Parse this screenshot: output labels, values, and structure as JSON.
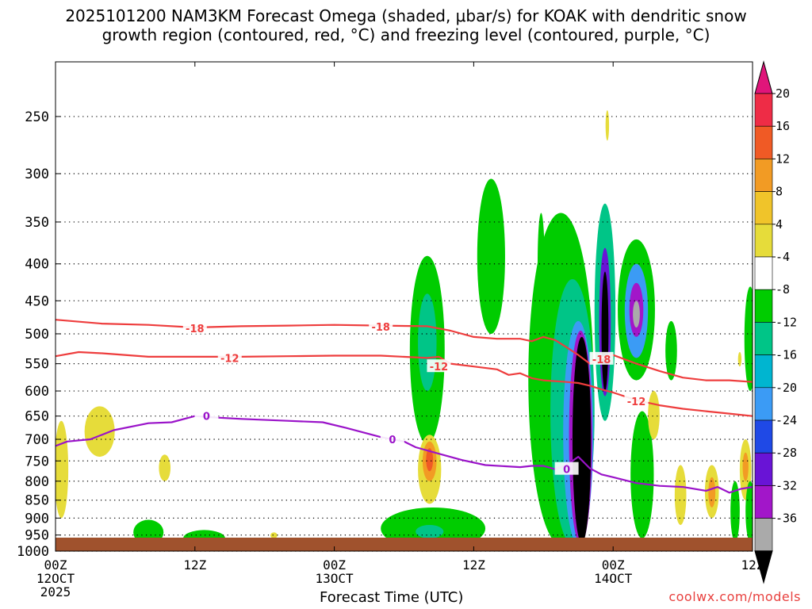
{
  "title": {
    "line1": "2025101200 NAM3KM Forecast Omega (shaded, μbar/s) for KOAK with dendritic snow",
    "line2": "growth region (contoured, red, °C) and freezing level (contoured, purple, °C)"
  },
  "credit": "coolwx.com/models",
  "chart_data": {
    "type": "heatmap",
    "xlabel": "Forecast Time (UTC)",
    "ylabel": "",
    "xlim": [
      0,
      60
    ],
    "x_ticks": [
      {
        "x": 0,
        "lines": [
          "00Z",
          "12OCT",
          "2025"
        ]
      },
      {
        "x": 12,
        "lines": [
          "12Z"
        ]
      },
      {
        "x": 24,
        "lines": [
          "00Z",
          "13OCT"
        ]
      },
      {
        "x": 36,
        "lines": [
          "12Z"
        ]
      },
      {
        "x": 48,
        "lines": [
          "00Z",
          "14OCT"
        ]
      },
      {
        "x": 60,
        "lines": [
          "12Z"
        ]
      }
    ],
    "y_scale": "log-pressure (hPa), inverted",
    "ylim": [
      1000,
      210
    ],
    "y_ticks": [
      250,
      300,
      350,
      400,
      450,
      500,
      550,
      600,
      650,
      700,
      750,
      800,
      850,
      900,
      950,
      1000
    ],
    "grid": "dotted horizontal at each pressure tick",
    "colorbar": {
      "labels": [
        20,
        16,
        12,
        8,
        4,
        -4,
        -8,
        -12,
        -16,
        -20,
        -24,
        -28,
        -32,
        -36
      ],
      "colors": [
        "#ee2c46",
        "#f05a25",
        "#f29b24",
        "#f0c42a",
        "#e6dc3a",
        "#ffffff",
        "#00cc00",
        "#00c587",
        "#00b5d0",
        "#3b9bf5",
        "#1f49e6",
        "#6914d6",
        "#a216c9",
        "#aaaaaa",
        "#000000"
      ],
      "top_color": "#e0157a",
      "bottom_color": "#000000"
    },
    "series": [
      {
        "name": "-18",
        "color": "#ee3d3d",
        "kind": "dendritic growth region (red)",
        "x": [
          0,
          4,
          8,
          12,
          16,
          20,
          24,
          28,
          32,
          34,
          36,
          38,
          40,
          41,
          42,
          43,
          44,
          45,
          46,
          47,
          48,
          50,
          52,
          54,
          56,
          58,
          60
        ],
        "y": [
          478,
          484,
          486,
          490,
          488,
          487,
          486,
          487,
          488,
          495,
          505,
          508,
          508,
          512,
          505,
          510,
          522,
          535,
          550,
          540,
          535,
          550,
          563,
          575,
          580,
          580,
          583
        ]
      },
      {
        "name": "-12",
        "color": "#ee3d3d",
        "kind": "dendritic growth region (red)",
        "x": [
          0,
          2,
          4,
          8,
          12,
          16,
          20,
          24,
          28,
          32,
          33,
          34,
          36,
          38,
          39,
          40,
          41,
          42,
          44,
          45,
          46,
          47,
          48,
          50,
          52,
          54,
          56,
          58,
          60
        ],
        "y": [
          537,
          530,
          532,
          538,
          538,
          538,
          537,
          536,
          536,
          540,
          538,
          550,
          555,
          560,
          570,
          567,
          576,
          580,
          583,
          585,
          590,
          597,
          603,
          618,
          628,
          635,
          640,
          645,
          650
        ]
      },
      {
        "name": "0",
        "color": "#9a13c9",
        "kind": "freezing level (purple)",
        "x": [
          0,
          1,
          3,
          5,
          8,
          10,
          12,
          13,
          16,
          20,
          23,
          25,
          28,
          30,
          31,
          33,
          35,
          37,
          40,
          41,
          42,
          43,
          44,
          45,
          46,
          47,
          48,
          50,
          52,
          54,
          56,
          57,
          58,
          59,
          60
        ],
        "y": [
          715,
          705,
          700,
          680,
          665,
          663,
          650,
          652,
          656,
          660,
          663,
          675,
          695,
          705,
          718,
          733,
          748,
          760,
          765,
          762,
          762,
          770,
          760,
          740,
          768,
          783,
          790,
          805,
          812,
          815,
          825,
          815,
          830,
          820,
          815
        ]
      }
    ],
    "contour_labels": [
      {
        "text": "-18",
        "x": 12,
        "y": 491,
        "series": "-18"
      },
      {
        "text": "-18",
        "x": 28,
        "y": 489,
        "series": "-18"
      },
      {
        "text": "-18",
        "x": 47,
        "y": 542,
        "series": "-18"
      },
      {
        "text": "-12",
        "x": 15,
        "y": 540,
        "series": "-12"
      },
      {
        "text": "-12",
        "x": 33,
        "y": 555,
        "series": "-12"
      },
      {
        "text": "-12",
        "x": 50,
        "y": 620,
        "series": "-12"
      },
      {
        "text": "0",
        "x": 13,
        "y": 650,
        "series": "0"
      },
      {
        "text": "0",
        "x": 29,
        "y": 700,
        "series": "0"
      },
      {
        "text": "0",
        "x": 44,
        "y": 770,
        "series": "0"
      }
    ],
    "omega_regions": [
      {
        "x": 0.5,
        "y": 760,
        "rx": 0.6,
        "ry_low": 900,
        "ry_high": 660,
        "value": 4
      },
      {
        "x": 3.8,
        "y": 690,
        "rx": 1.3,
        "ry_low": 740,
        "ry_high": 630,
        "value": 4
      },
      {
        "x": 9.4,
        "y": 765,
        "rx": 0.5,
        "ry_low": 800,
        "ry_high": 735,
        "value": 4
      },
      {
        "x": 1.3,
        "y": 985,
        "rx": 0.8,
        "ry_low": 995,
        "ry_high": 975,
        "value": -4
      },
      {
        "x": 8.0,
        "y": 935,
        "rx": 1.3,
        "ry_low": 980,
        "ry_high": 905,
        "value": -4
      },
      {
        "x": 12.8,
        "y": 960,
        "rx": 1.8,
        "ry_low": 985,
        "ry_high": 935,
        "value": -4
      },
      {
        "x": 26.0,
        "y": 980,
        "rx": 3.3,
        "ry_low": 1000,
        "ry_high": 960,
        "value": -4
      },
      {
        "x": 18.8,
        "y": 952,
        "rx": 0.3,
        "ry_low": 960,
        "ry_high": 942,
        "value": 4
      },
      {
        "x": 32.5,
        "y": 950,
        "rx": 4.5,
        "ry_low": 995,
        "ry_high": 870,
        "value": -4
      },
      {
        "x": 32.2,
        "y": 940,
        "rx": 1.2,
        "ry_low": 960,
        "ry_high": 920,
        "value": -8
      },
      {
        "x": 32.0,
        "y": 520,
        "rx": 1.5,
        "ry_low": 710,
        "ry_high": 390,
        "value": -4
      },
      {
        "x": 32.0,
        "y": 530,
        "rx": 0.8,
        "ry_low": 600,
        "ry_high": 440,
        "value": -8
      },
      {
        "x": 32.2,
        "y": 745,
        "rx": 1.0,
        "ry_low": 860,
        "ry_high": 690,
        "value": 4
      },
      {
        "x": 32.2,
        "y": 745,
        "rx": 0.6,
        "ry_low": 800,
        "ry_high": 705,
        "value": 12
      },
      {
        "x": 32.2,
        "y": 745,
        "rx": 0.3,
        "ry_low": 775,
        "ry_high": 720,
        "value": 16
      },
      {
        "x": 37.5,
        "y": 390,
        "rx": 1.2,
        "ry_low": 500,
        "ry_high": 305,
        "value": -4
      },
      {
        "x": 41.8,
        "y": 370,
        "rx": 0.3,
        "ry_low": 470,
        "ry_high": 340,
        "value": -4
      },
      {
        "x": 43.5,
        "y": 570,
        "rx": 2.8,
        "ry_low": 980,
        "ry_high": 340,
        "value": -4
      },
      {
        "x": 44.5,
        "y": 650,
        "rx": 1.9,
        "ry_low": 980,
        "ry_high": 420,
        "value": -8
      },
      {
        "x": 45.0,
        "y": 720,
        "rx": 1.3,
        "ry_low": 980,
        "ry_high": 480,
        "value": -16
      },
      {
        "x": 45.2,
        "y": 760,
        "rx": 1.0,
        "ry_low": 980,
        "ry_high": 495,
        "value": -28
      },
      {
        "x": 45.3,
        "y": 770,
        "rx": 0.8,
        "ry_low": 975,
        "ry_high": 505,
        "value": -36
      },
      {
        "x": 47.3,
        "y": 450,
        "rx": 0.9,
        "ry_low": 660,
        "ry_high": 330,
        "value": -8
      },
      {
        "x": 47.3,
        "y": 430,
        "rx": 0.5,
        "ry_low": 610,
        "ry_high": 380,
        "value": -24
      },
      {
        "x": 47.3,
        "y": 480,
        "rx": 0.3,
        "ry_low": 600,
        "ry_high": 410,
        "value": -36
      },
      {
        "x": 50.0,
        "y": 470,
        "rx": 1.6,
        "ry_low": 580,
        "ry_high": 370,
        "value": -4
      },
      {
        "x": 50.0,
        "y": 470,
        "rx": 1.0,
        "ry_low": 540,
        "ry_high": 400,
        "value": -16
      },
      {
        "x": 50.0,
        "y": 460,
        "rx": 0.6,
        "ry_low": 505,
        "ry_high": 425,
        "value": -28
      },
      {
        "x": 50.0,
        "y": 470,
        "rx": 0.3,
        "ry_low": 490,
        "ry_high": 450,
        "value": -32
      },
      {
        "x": 50.5,
        "y": 800,
        "rx": 1.0,
        "ry_low": 960,
        "ry_high": 640,
        "value": -4
      },
      {
        "x": 51.5,
        "y": 640,
        "rx": 0.5,
        "ry_low": 700,
        "ry_high": 600,
        "value": 4
      },
      {
        "x": 53.0,
        "y": 520,
        "rx": 0.5,
        "ry_low": 580,
        "ry_high": 480,
        "value": -4
      },
      {
        "x": 53.8,
        "y": 870,
        "rx": 0.5,
        "ry_low": 920,
        "ry_high": 760,
        "value": 4
      },
      {
        "x": 56.5,
        "y": 820,
        "rx": 0.6,
        "ry_low": 900,
        "ry_high": 760,
        "value": 4
      },
      {
        "x": 56.5,
        "y": 820,
        "rx": 0.3,
        "ry_low": 870,
        "ry_high": 790,
        "value": 12
      },
      {
        "x": 58.5,
        "y": 860,
        "rx": 0.4,
        "ry_low": 970,
        "ry_high": 800,
        "value": -4
      },
      {
        "x": 59.4,
        "y": 760,
        "rx": 0.5,
        "ry_low": 850,
        "ry_high": 700,
        "value": 4
      },
      {
        "x": 59.4,
        "y": 760,
        "rx": 0.25,
        "ry_low": 800,
        "ry_high": 730,
        "value": 12
      },
      {
        "x": 59.8,
        "y": 500,
        "rx": 0.5,
        "ry_low": 600,
        "ry_high": 430,
        "value": -4
      },
      {
        "x": 59.8,
        "y": 860,
        "rx": 0.4,
        "ry_low": 970,
        "ry_high": 800,
        "value": -4
      },
      {
        "x": 47.5,
        "y": 256,
        "rx": 0.15,
        "ry_low": 270,
        "ry_high": 245,
        "value": 4
      },
      {
        "x": 58.9,
        "y": 540,
        "rx": 0.15,
        "ry_low": 555,
        "ry_high": 530,
        "value": 4
      }
    ],
    "terrain": {
      "color": "#a0522d",
      "pressure": 1010
    }
  }
}
